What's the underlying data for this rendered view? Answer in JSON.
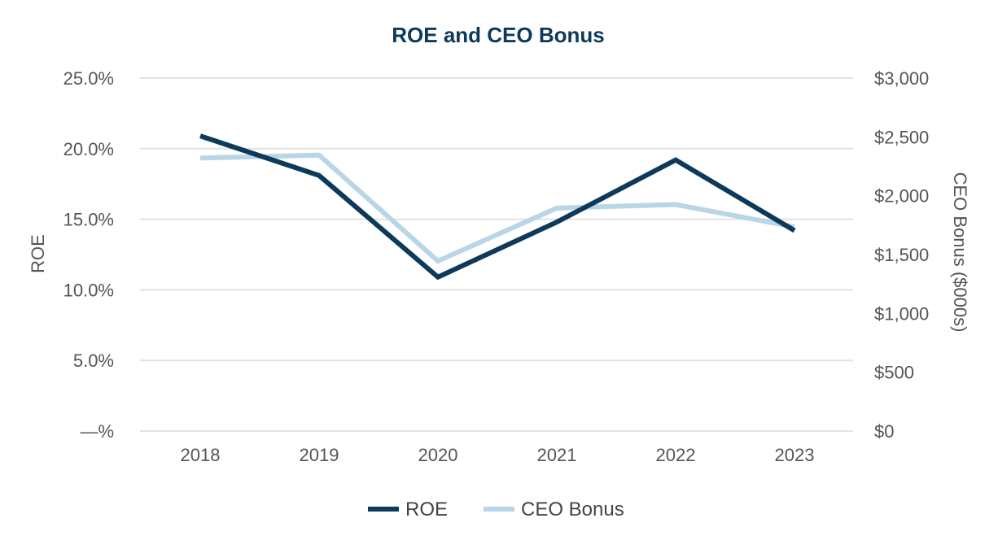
{
  "chart_data": {
    "type": "line",
    "title": "ROE and CEO Bonus",
    "categories": [
      "2018",
      "2019",
      "2020",
      "2021",
      "2022",
      "2023"
    ],
    "y_left": {
      "label": "ROE",
      "ylim": [
        0,
        25
      ],
      "ticks": [
        0,
        5,
        10,
        15,
        20,
        25
      ],
      "tick_labels": [
        "—%",
        "5.0%",
        "10.0%",
        "15.0%",
        "20.0%",
        "25.0%"
      ]
    },
    "y_right": {
      "label": "CEO Bonus ($000s)",
      "ylim": [
        0,
        3000
      ],
      "ticks": [
        0,
        500,
        1000,
        1500,
        2000,
        2500,
        3000
      ],
      "tick_labels": [
        "$0",
        "$500",
        "$1,000",
        "$1,500",
        "$2,000",
        "$2,500",
        "$3,000"
      ]
    },
    "series": [
      {
        "name": "ROE",
        "axis": "left",
        "color": "#0d3a5a",
        "values": [
          20.9,
          18.1,
          10.9,
          14.8,
          19.2,
          14.2
        ]
      },
      {
        "name": "CEO Bonus",
        "axis": "right",
        "color": "#b8d6e6",
        "values": [
          2320,
          2345,
          1445,
          1895,
          1925,
          1735
        ]
      }
    ],
    "legend": {
      "placement": "bottom-center",
      "items": [
        "ROE",
        "CEO Bonus"
      ]
    },
    "grid": true
  }
}
